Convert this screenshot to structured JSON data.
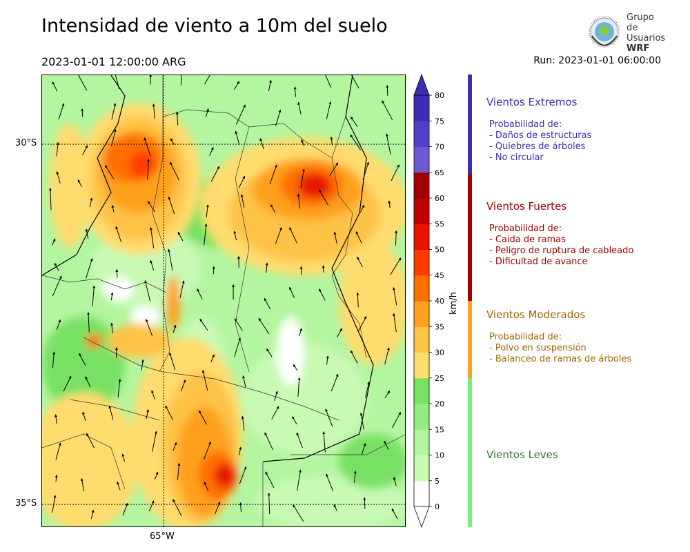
{
  "header": {
    "title": "Intensidad de viento a 10m del suelo",
    "valid_time": "2023-01-01 12:00:00 ARG",
    "run_time": "Run: 2023-01-01 06:00:00"
  },
  "logo": {
    "line1": "Grupo de",
    "line2": "Usuarios",
    "line3": "WRF"
  },
  "map": {
    "lat_labels": [
      "30°S",
      "35°S"
    ],
    "lon_labels": [
      "65°W"
    ]
  },
  "colorbar": {
    "unit": "km/h",
    "ticks": [
      0,
      5,
      10,
      15,
      20,
      25,
      30,
      35,
      40,
      45,
      50,
      55,
      60,
      65,
      70,
      75,
      80
    ],
    "colors": [
      "#ffffff",
      "#c8fab4",
      "#b4f5a0",
      "#96eb82",
      "#78e164",
      "#ffdc6e",
      "#ffc346",
      "#ffa01e",
      "#ff6e00",
      "#ff3c00",
      "#e61400",
      "#be0000",
      "#a00000",
      "#6e5ad7",
      "#5041c8",
      "#3c2db4"
    ],
    "extend_color": "#3c2db4"
  },
  "categories": [
    {
      "name": "Vientos Extremos",
      "color": "#3c2db4",
      "desc": [
        "Probabilidad de:",
        "- Daños de estructuras",
        "- Quiebres de árboles",
        "- No circular"
      ]
    },
    {
      "name": "Vientos Fuertes",
      "color": "#a00000",
      "desc": [
        "Probabilidad de:",
        "- Caida de ramas",
        "- Peligro de ruptura de cableado",
        "- Dificultad de avance"
      ]
    },
    {
      "name": "Vientos Moderados",
      "color": "#a06400",
      "desc": [
        "Probabilidad de:",
        "- Polvo en suspensión",
        "- Balanceo de ramas de árboles"
      ]
    },
    {
      "name": "Vientos Leves",
      "color": "#2d7d2d",
      "desc": []
    }
  ],
  "category_bar_colors": [
    "#3c2db4",
    "#a00000",
    "#ffa01e",
    "#78f078"
  ]
}
